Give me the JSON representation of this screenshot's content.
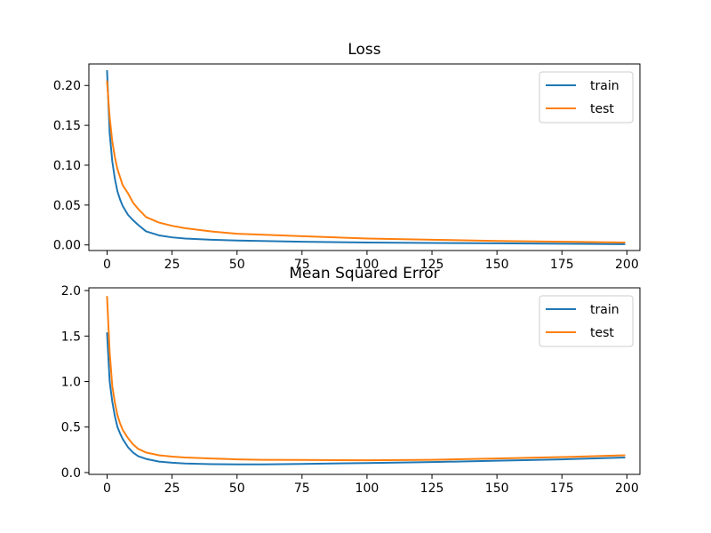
{
  "chart_data": [
    {
      "type": "line",
      "title": "Loss",
      "xlabel": "",
      "ylabel": "",
      "xlim": [
        -7,
        205
      ],
      "ylim": [
        -0.007,
        0.227
      ],
      "xticks": [
        0,
        25,
        50,
        75,
        100,
        125,
        150,
        175,
        200
      ],
      "yticks": [
        0.0,
        0.05,
        0.1,
        0.15,
        0.2
      ],
      "ytick_labels": [
        "0.00",
        "0.05",
        "0.10",
        "0.15",
        "0.20"
      ],
      "legend_position": "top-right",
      "grid": false,
      "series": [
        {
          "name": "train",
          "color": "#1f77b4",
          "x": [
            0,
            1,
            2,
            3,
            4,
            5,
            6,
            8,
            10,
            12,
            15,
            20,
            25,
            30,
            40,
            50,
            75,
            100,
            125,
            150,
            175,
            199
          ],
          "y": [
            0.218,
            0.14,
            0.105,
            0.083,
            0.067,
            0.057,
            0.049,
            0.038,
            0.031,
            0.025,
            0.017,
            0.012,
            0.0095,
            0.008,
            0.0065,
            0.0055,
            0.004,
            0.003,
            0.0025,
            0.002,
            0.0015,
            0.001
          ]
        },
        {
          "name": "test",
          "color": "#ff7f0e",
          "x": [
            0,
            1,
            2,
            3,
            4,
            5,
            6,
            8,
            10,
            12,
            15,
            20,
            25,
            30,
            40,
            50,
            75,
            100,
            125,
            150,
            175,
            199
          ],
          "y": [
            0.205,
            0.16,
            0.13,
            0.11,
            0.095,
            0.085,
            0.075,
            0.065,
            0.053,
            0.045,
            0.035,
            0.028,
            0.024,
            0.021,
            0.017,
            0.014,
            0.011,
            0.008,
            0.0065,
            0.005,
            0.004,
            0.003
          ]
        }
      ]
    },
    {
      "type": "line",
      "title": "Mean Squared Error",
      "xlabel": "",
      "ylabel": "",
      "xlim": [
        -7,
        205
      ],
      "ylim": [
        -0.02,
        2.03
      ],
      "xticks": [
        0,
        25,
        50,
        75,
        100,
        125,
        150,
        175,
        200
      ],
      "yticks": [
        0.0,
        0.5,
        1.0,
        1.5,
        2.0
      ],
      "ytick_labels": [
        "0.0",
        "0.5",
        "1.0",
        "1.5",
        "2.0"
      ],
      "legend_position": "top-right",
      "grid": false,
      "series": [
        {
          "name": "train",
          "color": "#1f77b4",
          "x": [
            0,
            1,
            2,
            3,
            4,
            5,
            6,
            8,
            10,
            12,
            15,
            20,
            25,
            30,
            40,
            50,
            60,
            75,
            100,
            125,
            150,
            175,
            199
          ],
          "y": [
            1.53,
            1.0,
            0.78,
            0.62,
            0.5,
            0.43,
            0.37,
            0.28,
            0.22,
            0.18,
            0.15,
            0.12,
            0.108,
            0.1,
            0.092,
            0.09,
            0.09,
            0.095,
            0.105,
            0.115,
            0.13,
            0.145,
            0.165
          ]
        },
        {
          "name": "test",
          "color": "#ff7f0e",
          "x": [
            0,
            1,
            2,
            3,
            4,
            5,
            6,
            8,
            10,
            12,
            15,
            20,
            25,
            30,
            40,
            50,
            60,
            75,
            100,
            125,
            150,
            175,
            199
          ],
          "y": [
            1.93,
            1.32,
            0.95,
            0.77,
            0.63,
            0.54,
            0.47,
            0.38,
            0.31,
            0.26,
            0.22,
            0.19,
            0.175,
            0.165,
            0.155,
            0.145,
            0.14,
            0.138,
            0.135,
            0.14,
            0.155,
            0.17,
            0.19
          ]
        }
      ]
    }
  ]
}
